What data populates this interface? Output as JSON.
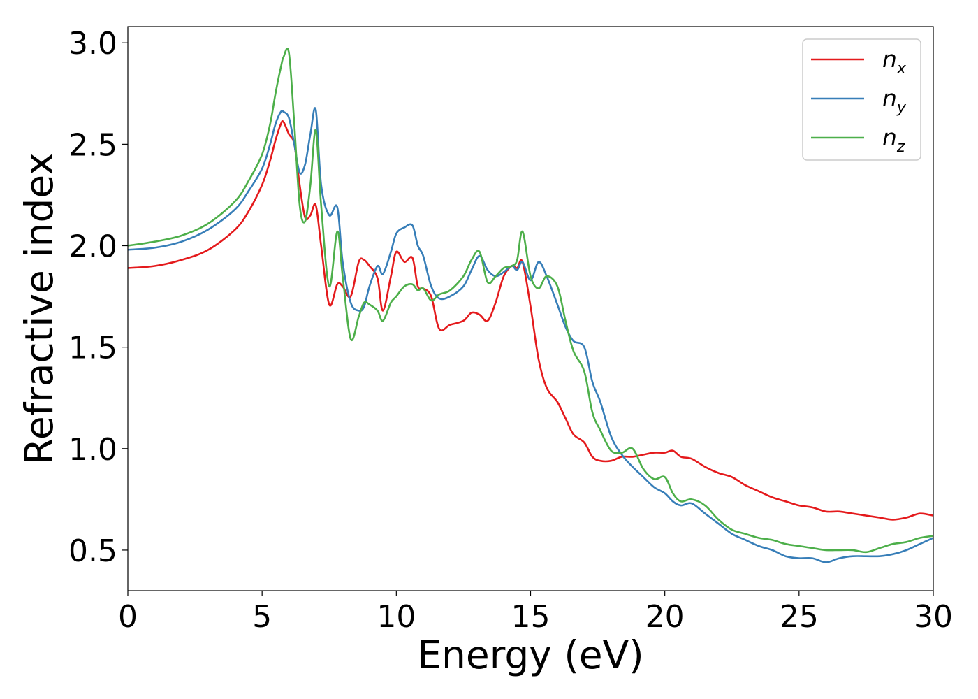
{
  "chart_data": {
    "type": "line",
    "title": "",
    "xlabel": "Energy (eV)",
    "ylabel": "Refractive index",
    "xlim": [
      0,
      30
    ],
    "ylim": [
      0.3,
      3.08
    ],
    "xticks": [
      0,
      5,
      10,
      15,
      20,
      25,
      30
    ],
    "xtick_labels": [
      "0",
      "5",
      "10",
      "15",
      "20",
      "25",
      "30"
    ],
    "yticks": [
      0.5,
      1.0,
      1.5,
      2.0,
      2.5,
      3.0
    ],
    "ytick_labels": [
      "0.5",
      "1.0",
      "1.5",
      "2.0",
      "2.5",
      "3.0"
    ],
    "grid": false,
    "legend_position": "top-right",
    "series": [
      {
        "name": "n_x",
        "label_base": "n",
        "label_sub": "x",
        "color": "#e41a1c",
        "x": [
          0,
          1,
          2,
          3,
          4,
          4.5,
          5,
          5.3,
          5.5,
          5.7,
          5.8,
          6.0,
          6.2,
          6.4,
          6.6,
          6.8,
          7.0,
          7.2,
          7.5,
          7.8,
          8.0,
          8.3,
          8.6,
          8.8,
          9.0,
          9.3,
          9.5,
          9.8,
          10.0,
          10.3,
          10.6,
          10.8,
          11.0,
          11.3,
          11.6,
          12.0,
          12.5,
          12.8,
          13.1,
          13.4,
          13.7,
          14.0,
          14.3,
          14.5,
          14.7,
          15.0,
          15.3,
          15.6,
          16.0,
          16.3,
          16.6,
          17.0,
          17.3,
          17.6,
          18.0,
          18.4,
          18.8,
          19.2,
          19.6,
          20.0,
          20.3,
          20.6,
          21.0,
          21.5,
          22.0,
          22.5,
          23.0,
          23.5,
          24.0,
          24.5,
          25.0,
          25.5,
          26.0,
          26.5,
          27.0,
          27.5,
          28.0,
          28.5,
          29.0,
          29.5,
          30.0
        ],
        "y": [
          1.89,
          1.9,
          1.93,
          1.98,
          2.08,
          2.17,
          2.3,
          2.42,
          2.52,
          2.6,
          2.61,
          2.55,
          2.5,
          2.3,
          2.14,
          2.15,
          2.2,
          2.0,
          1.71,
          1.81,
          1.8,
          1.75,
          1.92,
          1.93,
          1.9,
          1.84,
          1.68,
          1.85,
          1.97,
          1.92,
          1.94,
          1.8,
          1.79,
          1.75,
          1.59,
          1.61,
          1.63,
          1.67,
          1.66,
          1.63,
          1.72,
          1.85,
          1.9,
          1.89,
          1.92,
          1.7,
          1.44,
          1.3,
          1.23,
          1.15,
          1.07,
          1.03,
          0.96,
          0.94,
          0.94,
          0.96,
          0.96,
          0.97,
          0.98,
          0.98,
          0.99,
          0.96,
          0.95,
          0.91,
          0.88,
          0.86,
          0.82,
          0.79,
          0.76,
          0.74,
          0.72,
          0.71,
          0.69,
          0.69,
          0.68,
          0.67,
          0.66,
          0.65,
          0.66,
          0.68,
          0.67
        ]
      },
      {
        "name": "n_y",
        "label_base": "n",
        "label_sub": "y",
        "color": "#377eb8",
        "x": [
          0,
          1,
          2,
          3,
          4,
          4.5,
          5,
          5.3,
          5.5,
          5.7,
          5.8,
          6.0,
          6.2,
          6.4,
          6.6,
          6.8,
          7.0,
          7.2,
          7.5,
          7.8,
          8.0,
          8.3,
          8.6,
          8.8,
          9.0,
          9.3,
          9.5,
          9.8,
          10.0,
          10.3,
          10.6,
          10.8,
          11.0,
          11.3,
          11.6,
          12.0,
          12.5,
          12.8,
          13.1,
          13.4,
          13.7,
          14.0,
          14.3,
          14.5,
          14.7,
          15.0,
          15.3,
          15.6,
          16.0,
          16.3,
          16.6,
          17.0,
          17.3,
          17.6,
          18.0,
          18.4,
          18.8,
          19.2,
          19.6,
          20.0,
          20.3,
          20.6,
          21.0,
          21.5,
          22.0,
          22.5,
          23.0,
          23.5,
          24.0,
          24.5,
          25.0,
          25.5,
          26.0,
          26.5,
          27.0,
          27.5,
          28.0,
          28.5,
          29.0,
          29.5,
          30.0
        ],
        "y": [
          1.98,
          1.99,
          2.02,
          2.08,
          2.18,
          2.27,
          2.38,
          2.5,
          2.6,
          2.66,
          2.66,
          2.63,
          2.5,
          2.36,
          2.4,
          2.55,
          2.67,
          2.3,
          2.15,
          2.19,
          1.92,
          1.72,
          1.68,
          1.7,
          1.8,
          1.9,
          1.86,
          1.97,
          2.06,
          2.09,
          2.1,
          2.0,
          1.95,
          1.8,
          1.74,
          1.75,
          1.8,
          1.88,
          1.95,
          1.88,
          1.85,
          1.87,
          1.9,
          1.88,
          1.92,
          1.83,
          1.92,
          1.85,
          1.71,
          1.6,
          1.53,
          1.5,
          1.33,
          1.23,
          1.06,
          0.97,
          0.91,
          0.86,
          0.81,
          0.78,
          0.74,
          0.72,
          0.73,
          0.68,
          0.63,
          0.58,
          0.55,
          0.52,
          0.5,
          0.47,
          0.46,
          0.46,
          0.44,
          0.46,
          0.47,
          0.47,
          0.47,
          0.48,
          0.5,
          0.53,
          0.56
        ]
      },
      {
        "name": "n_z",
        "label_base": "n",
        "label_sub": "z",
        "color": "#4daf4a",
        "x": [
          0,
          1,
          2,
          3,
          4,
          4.5,
          5,
          5.3,
          5.5,
          5.7,
          5.8,
          6.0,
          6.2,
          6.4,
          6.6,
          6.8,
          7.0,
          7.2,
          7.5,
          7.8,
          8.0,
          8.3,
          8.6,
          8.8,
          9.0,
          9.3,
          9.5,
          9.8,
          10.0,
          10.3,
          10.6,
          10.8,
          11.0,
          11.3,
          11.6,
          12.0,
          12.5,
          12.8,
          13.1,
          13.4,
          13.7,
          14.0,
          14.3,
          14.5,
          14.7,
          15.0,
          15.3,
          15.6,
          16.0,
          16.3,
          16.6,
          17.0,
          17.3,
          17.6,
          18.0,
          18.4,
          18.8,
          19.2,
          19.6,
          20.0,
          20.3,
          20.6,
          21.0,
          21.5,
          22.0,
          22.5,
          23.0,
          23.5,
          24.0,
          24.5,
          25.0,
          25.5,
          26.0,
          26.5,
          27.0,
          27.5,
          28.0,
          28.5,
          29.0,
          29.5,
          30.0
        ],
        "y": [
          2.0,
          2.02,
          2.05,
          2.11,
          2.22,
          2.32,
          2.45,
          2.6,
          2.75,
          2.88,
          2.93,
          2.95,
          2.6,
          2.2,
          2.12,
          2.3,
          2.57,
          2.2,
          1.8,
          2.07,
          1.85,
          1.54,
          1.65,
          1.72,
          1.71,
          1.68,
          1.63,
          1.72,
          1.75,
          1.8,
          1.81,
          1.78,
          1.79,
          1.73,
          1.76,
          1.78,
          1.85,
          1.93,
          1.97,
          1.82,
          1.85,
          1.89,
          1.9,
          1.93,
          2.07,
          1.85,
          1.79,
          1.85,
          1.8,
          1.63,
          1.48,
          1.38,
          1.18,
          1.09,
          0.99,
          0.98,
          1.0,
          0.9,
          0.85,
          0.86,
          0.78,
          0.74,
          0.75,
          0.72,
          0.65,
          0.6,
          0.58,
          0.56,
          0.55,
          0.53,
          0.52,
          0.51,
          0.5,
          0.5,
          0.5,
          0.49,
          0.51,
          0.53,
          0.54,
          0.56,
          0.57
        ]
      }
    ]
  }
}
